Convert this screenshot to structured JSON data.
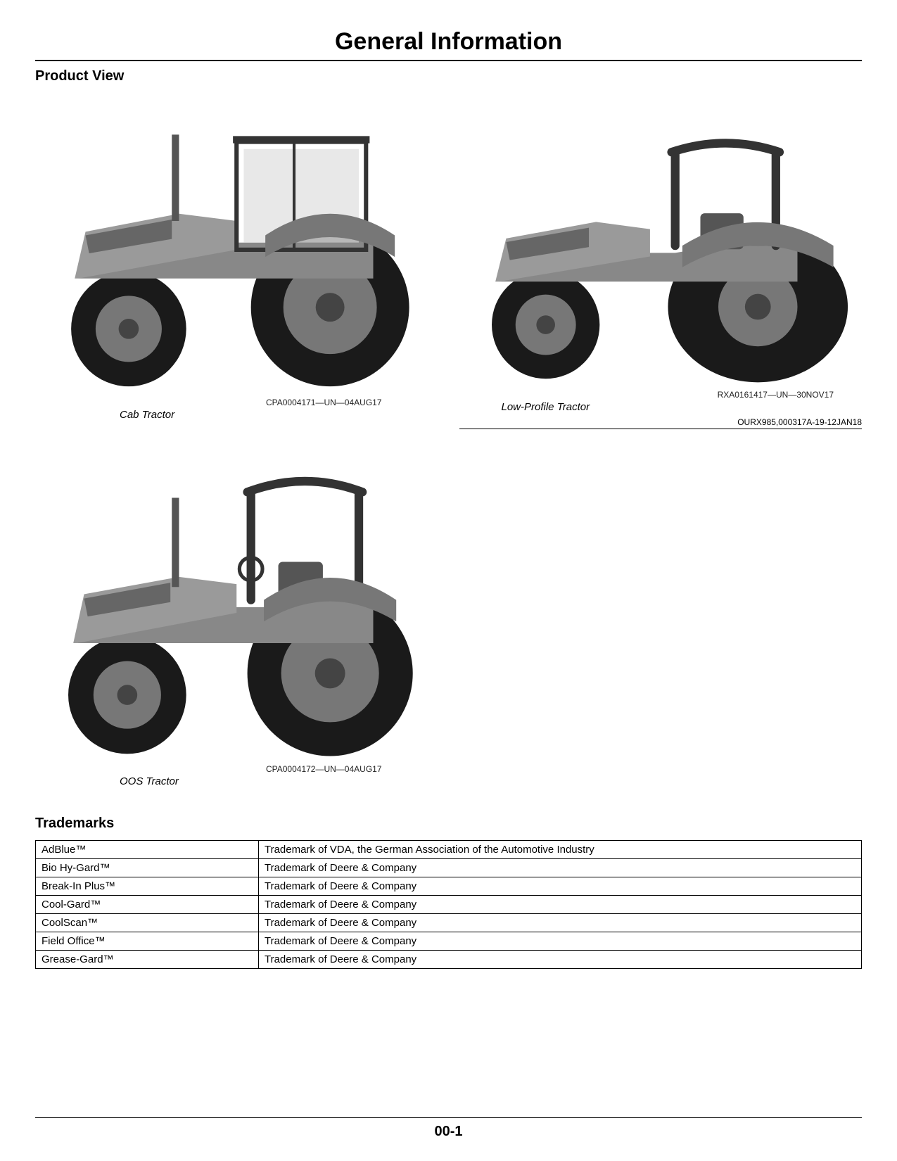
{
  "page": {
    "title": "General Information",
    "number": "00-1",
    "background_color": "#ffffff",
    "text_color": "#000000"
  },
  "product_view": {
    "heading": "Product View",
    "section_reference": "OURX985,000317A-19-12JAN18",
    "figures": [
      {
        "caption": "Cab Tractor",
        "image_id": "CPA0004171—UN—04AUG17",
        "type": "cab"
      },
      {
        "caption": "Low-Profile Tractor",
        "image_id": "RXA0161417—UN—30NOV17",
        "type": "low-profile"
      },
      {
        "caption": "OOS Tractor",
        "image_id": "CPA0004172—UN—04AUG17",
        "type": "oos"
      }
    ]
  },
  "trademarks": {
    "heading": "Trademarks",
    "rows": [
      {
        "name": "AdBlue™",
        "owner": "Trademark of VDA, the German Association of the Automotive Industry"
      },
      {
        "name": "Bio Hy-Gard™",
        "owner": "Trademark of Deere & Company"
      },
      {
        "name": "Break-In Plus™",
        "owner": "Trademark of Deere & Company"
      },
      {
        "name": "Cool-Gard™",
        "owner": "Trademark of Deere & Company"
      },
      {
        "name": "CoolScan™",
        "owner": "Trademark of Deere & Company"
      },
      {
        "name": "Field Office™",
        "owner": "Trademark of Deere & Company"
      },
      {
        "name": "Grease-Gard™",
        "owner": "Trademark of Deere & Company"
      }
    ]
  },
  "styling": {
    "title_fontsize": 34,
    "heading_fontsize": 20,
    "body_fontsize": 15,
    "caption_fontsize": 15,
    "id_fontsize": 12,
    "border_color": "#000000",
    "tractor_gray_dark": "#555555",
    "tractor_gray_mid": "#888888",
    "tractor_gray_light": "#bbbbbb",
    "tire_color": "#1a1a1a"
  }
}
